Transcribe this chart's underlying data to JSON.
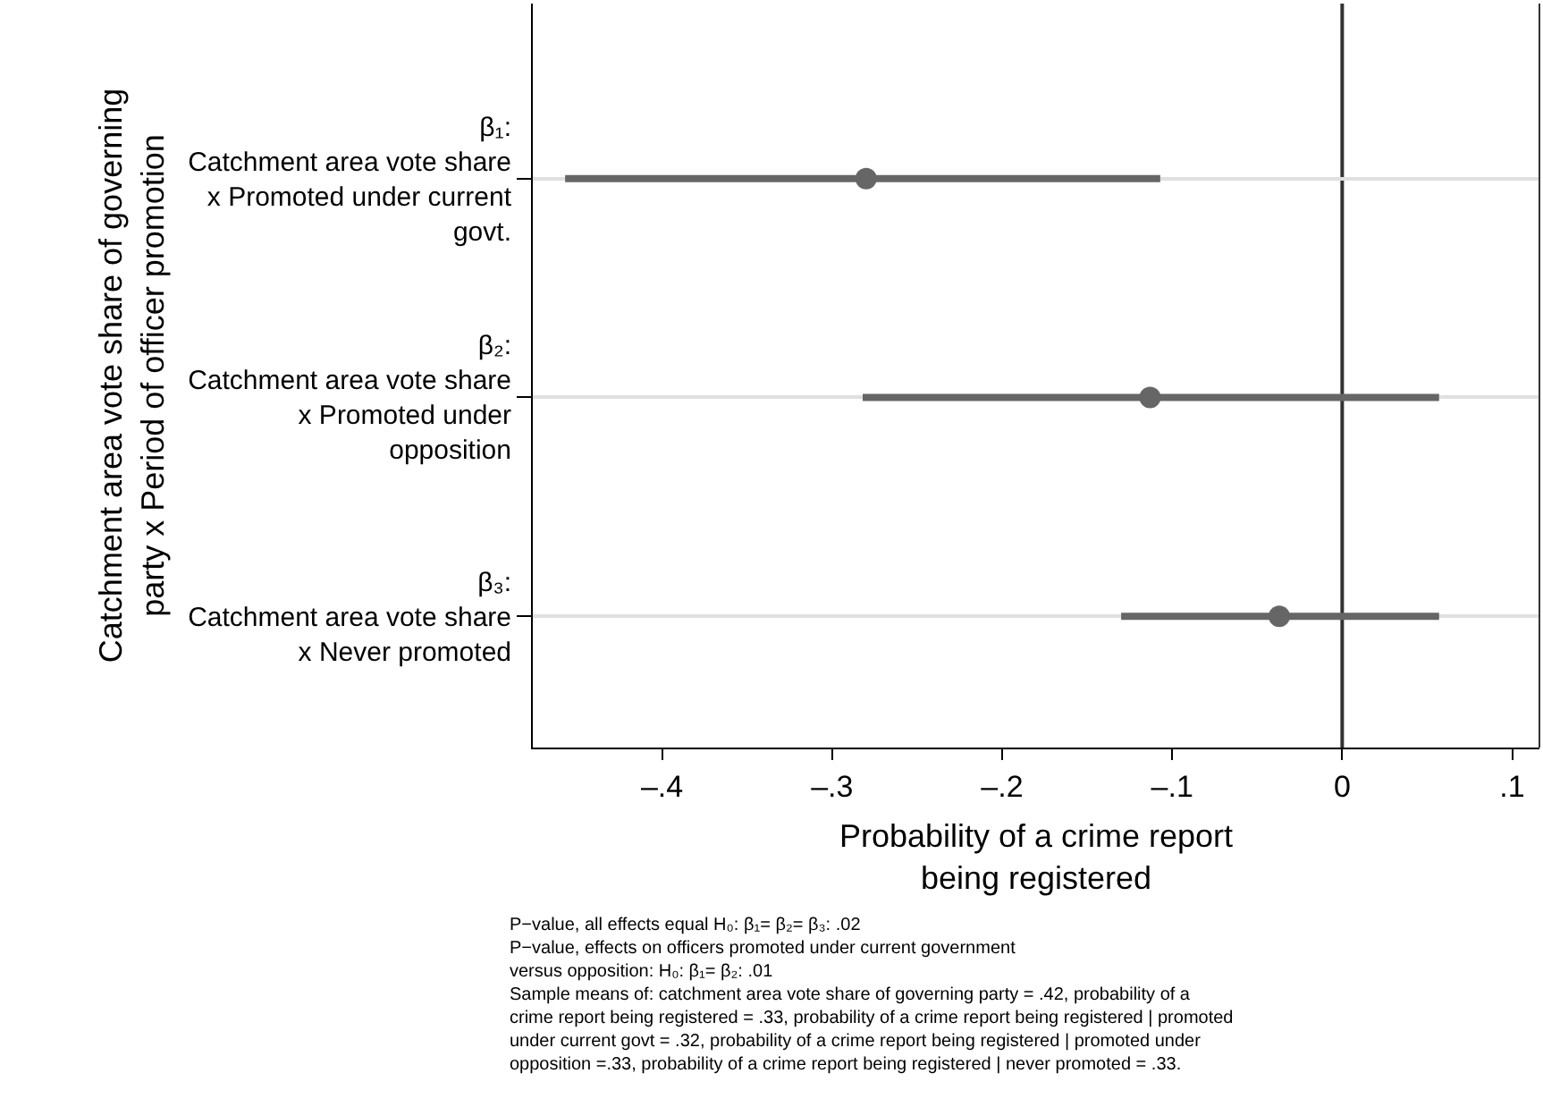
{
  "chart_data": {
    "type": "scatter",
    "orientation": "horizontal",
    "categories": [
      "β₁:\nCatchment area vote share\nx Promoted under current\ngovt.",
      "β₂:\nCatchment area vote share\nx Promoted under\nopposition",
      "β₃:\nCatchment area vote share\nx Never promoted"
    ],
    "series": [
      {
        "color": "#666666",
        "values": [
          -0.28,
          -0.113,
          -0.037
        ],
        "errors": [
          [
            -0.457,
            -0.107
          ],
          [
            -0.282,
            0.057
          ],
          [
            -0.13,
            0.057
          ]
        ]
      }
    ],
    "marker": "circle",
    "xlabel": "Probability of a crime report\nbeing registered",
    "ylabel": "Catchment area vote share of governing\nparty x Period of officer promotion",
    "xlim": [
      -0.476,
      0.116
    ],
    "xticks": [
      {
        "value": -0.4,
        "label": "–.4"
      },
      {
        "value": -0.3,
        "label": "–.3"
      },
      {
        "value": -0.2,
        "label": "–.2"
      },
      {
        "value": -0.1,
        "label": "–.1"
      },
      0,
      {
        "value": 0.1,
        "label": ".1"
      }
    ],
    "grid": "y",
    "ref_lines": [
      {
        "axis": "x",
        "value": 0,
        "color": "#333333"
      }
    ],
    "annotations": [
      "P−value, all effects equal H₀: β₁= β₂= β₃: .02\nP−value, effects on officers promoted under current government\nversus opposition: H₀: β₁= β₂: .01\nSample means of: catchment area vote share of governing party = .42, probability of a\ncrime report being registered = .33, probability of a crime report being registered | promoted\nunder current govt = .32, probability of a crime report being registered | promoted under\nopposition =.33, probability of a crime report being registered | never promoted = .33."
    ]
  }
}
